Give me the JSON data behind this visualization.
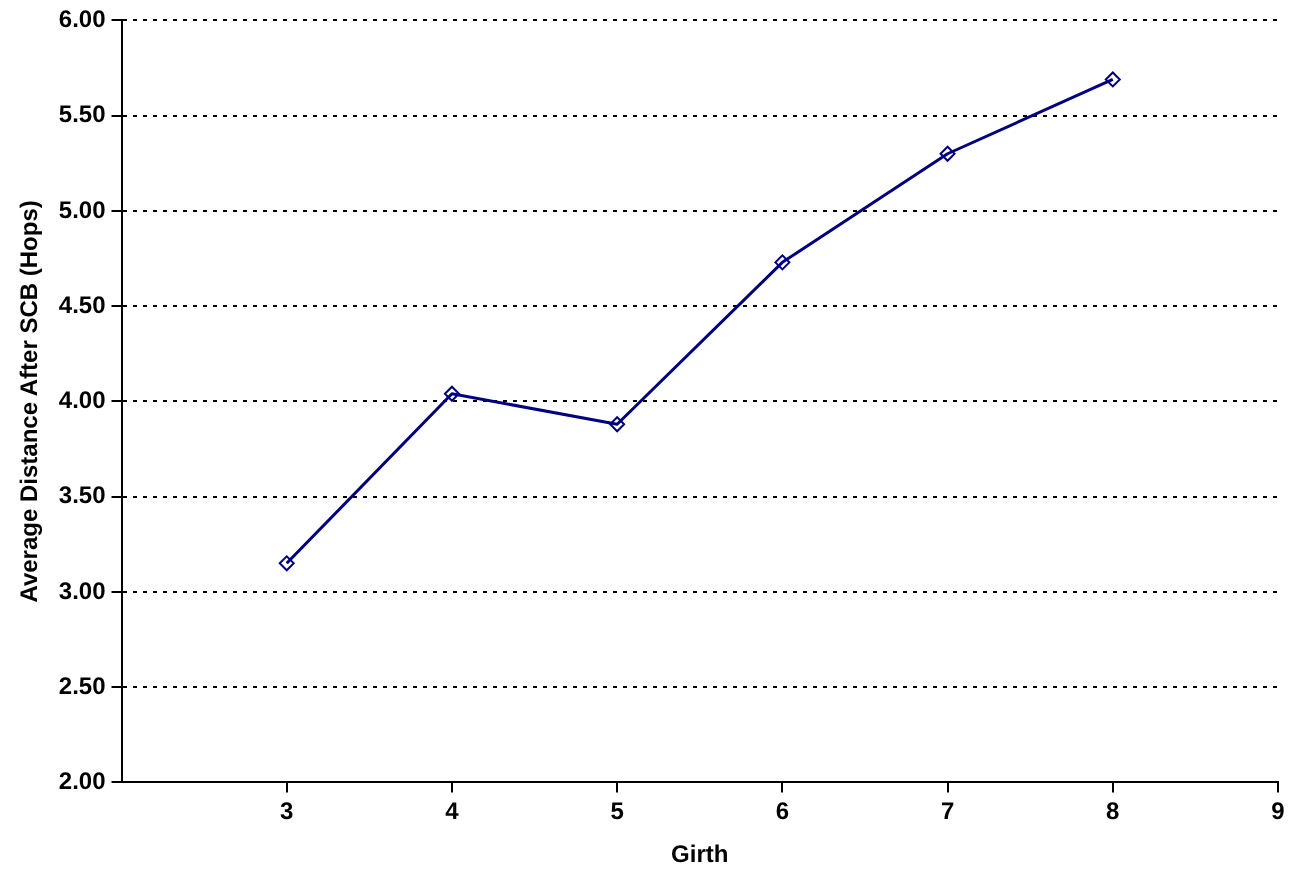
{
  "chart_data": {
    "type": "line",
    "xlabel": "Girth",
    "ylabel": "Average Distance After SCB (Hops)",
    "x": [
      3,
      4,
      5,
      6,
      7,
      8
    ],
    "series": [
      {
        "color": "#000080",
        "values": [
          3.15,
          4.04,
          3.88,
          4.73,
          5.3,
          5.69
        ]
      }
    ],
    "xlim": [
      2,
      9
    ],
    "xticks": [
      3,
      4,
      5,
      6,
      7,
      8,
      9
    ],
    "ylim": [
      2,
      6
    ],
    "yticks": [
      {
        "value": 2,
        "label": "2.00"
      },
      {
        "value": 2.5,
        "label": "2.50"
      },
      {
        "value": 3,
        "label": "3.00"
      },
      {
        "value": 3.5,
        "label": "3.50"
      },
      {
        "value": 4,
        "label": "4.00"
      },
      {
        "value": 4.5,
        "label": "4.50"
      },
      {
        "value": 5,
        "label": "5.00"
      },
      {
        "value": 5.5,
        "label": "5.50"
      },
      {
        "value": 6,
        "label": "6.00"
      }
    ],
    "grid": "y",
    "legend": false,
    "marker": "diamond",
    "line_style": "solid"
  }
}
